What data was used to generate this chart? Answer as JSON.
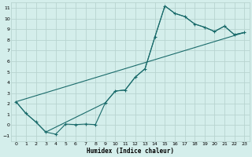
{
  "title": "",
  "xlabel": "Humidex (Indice chaleur)",
  "bg_color": "#d4eeeb",
  "grid_color": "#b8d4d0",
  "line_color": "#1a6b6b",
  "xlim": [
    -0.5,
    23.5
  ],
  "ylim": [
    -1.5,
    11.5
  ],
  "xticks": [
    0,
    1,
    2,
    3,
    4,
    5,
    6,
    7,
    8,
    9,
    10,
    11,
    12,
    13,
    14,
    15,
    16,
    17,
    18,
    19,
    20,
    21,
    22,
    23
  ],
  "yticks": [
    -1,
    0,
    1,
    2,
    3,
    4,
    5,
    6,
    7,
    8,
    9,
    10,
    11
  ],
  "series1_x": [
    0,
    1,
    2,
    3,
    4,
    5,
    6,
    7,
    8,
    9,
    10,
    11,
    12,
    13,
    14,
    15,
    16,
    17,
    18,
    19,
    20,
    21,
    22,
    23
  ],
  "series1_y": [
    2.2,
    1.1,
    0.3,
    -0.65,
    -0.85,
    0.1,
    0.05,
    0.1,
    0.05,
    2.1,
    3.2,
    3.3,
    4.5,
    5.3,
    8.3,
    11.2,
    10.5,
    10.2,
    9.5,
    9.2,
    8.8,
    9.3,
    8.5,
    8.7
  ],
  "series2_x": [
    0,
    1,
    2,
    3,
    9,
    10,
    11,
    12,
    13,
    14,
    15,
    16,
    17,
    18,
    19,
    20,
    21,
    22,
    23
  ],
  "series2_y": [
    2.2,
    1.1,
    0.3,
    -0.65,
    2.1,
    3.2,
    3.3,
    4.5,
    5.3,
    8.3,
    11.2,
    10.5,
    10.2,
    9.5,
    9.2,
    8.8,
    9.3,
    8.5,
    8.7
  ],
  "series3_x": [
    0,
    23
  ],
  "series3_y": [
    2.2,
    8.7
  ]
}
